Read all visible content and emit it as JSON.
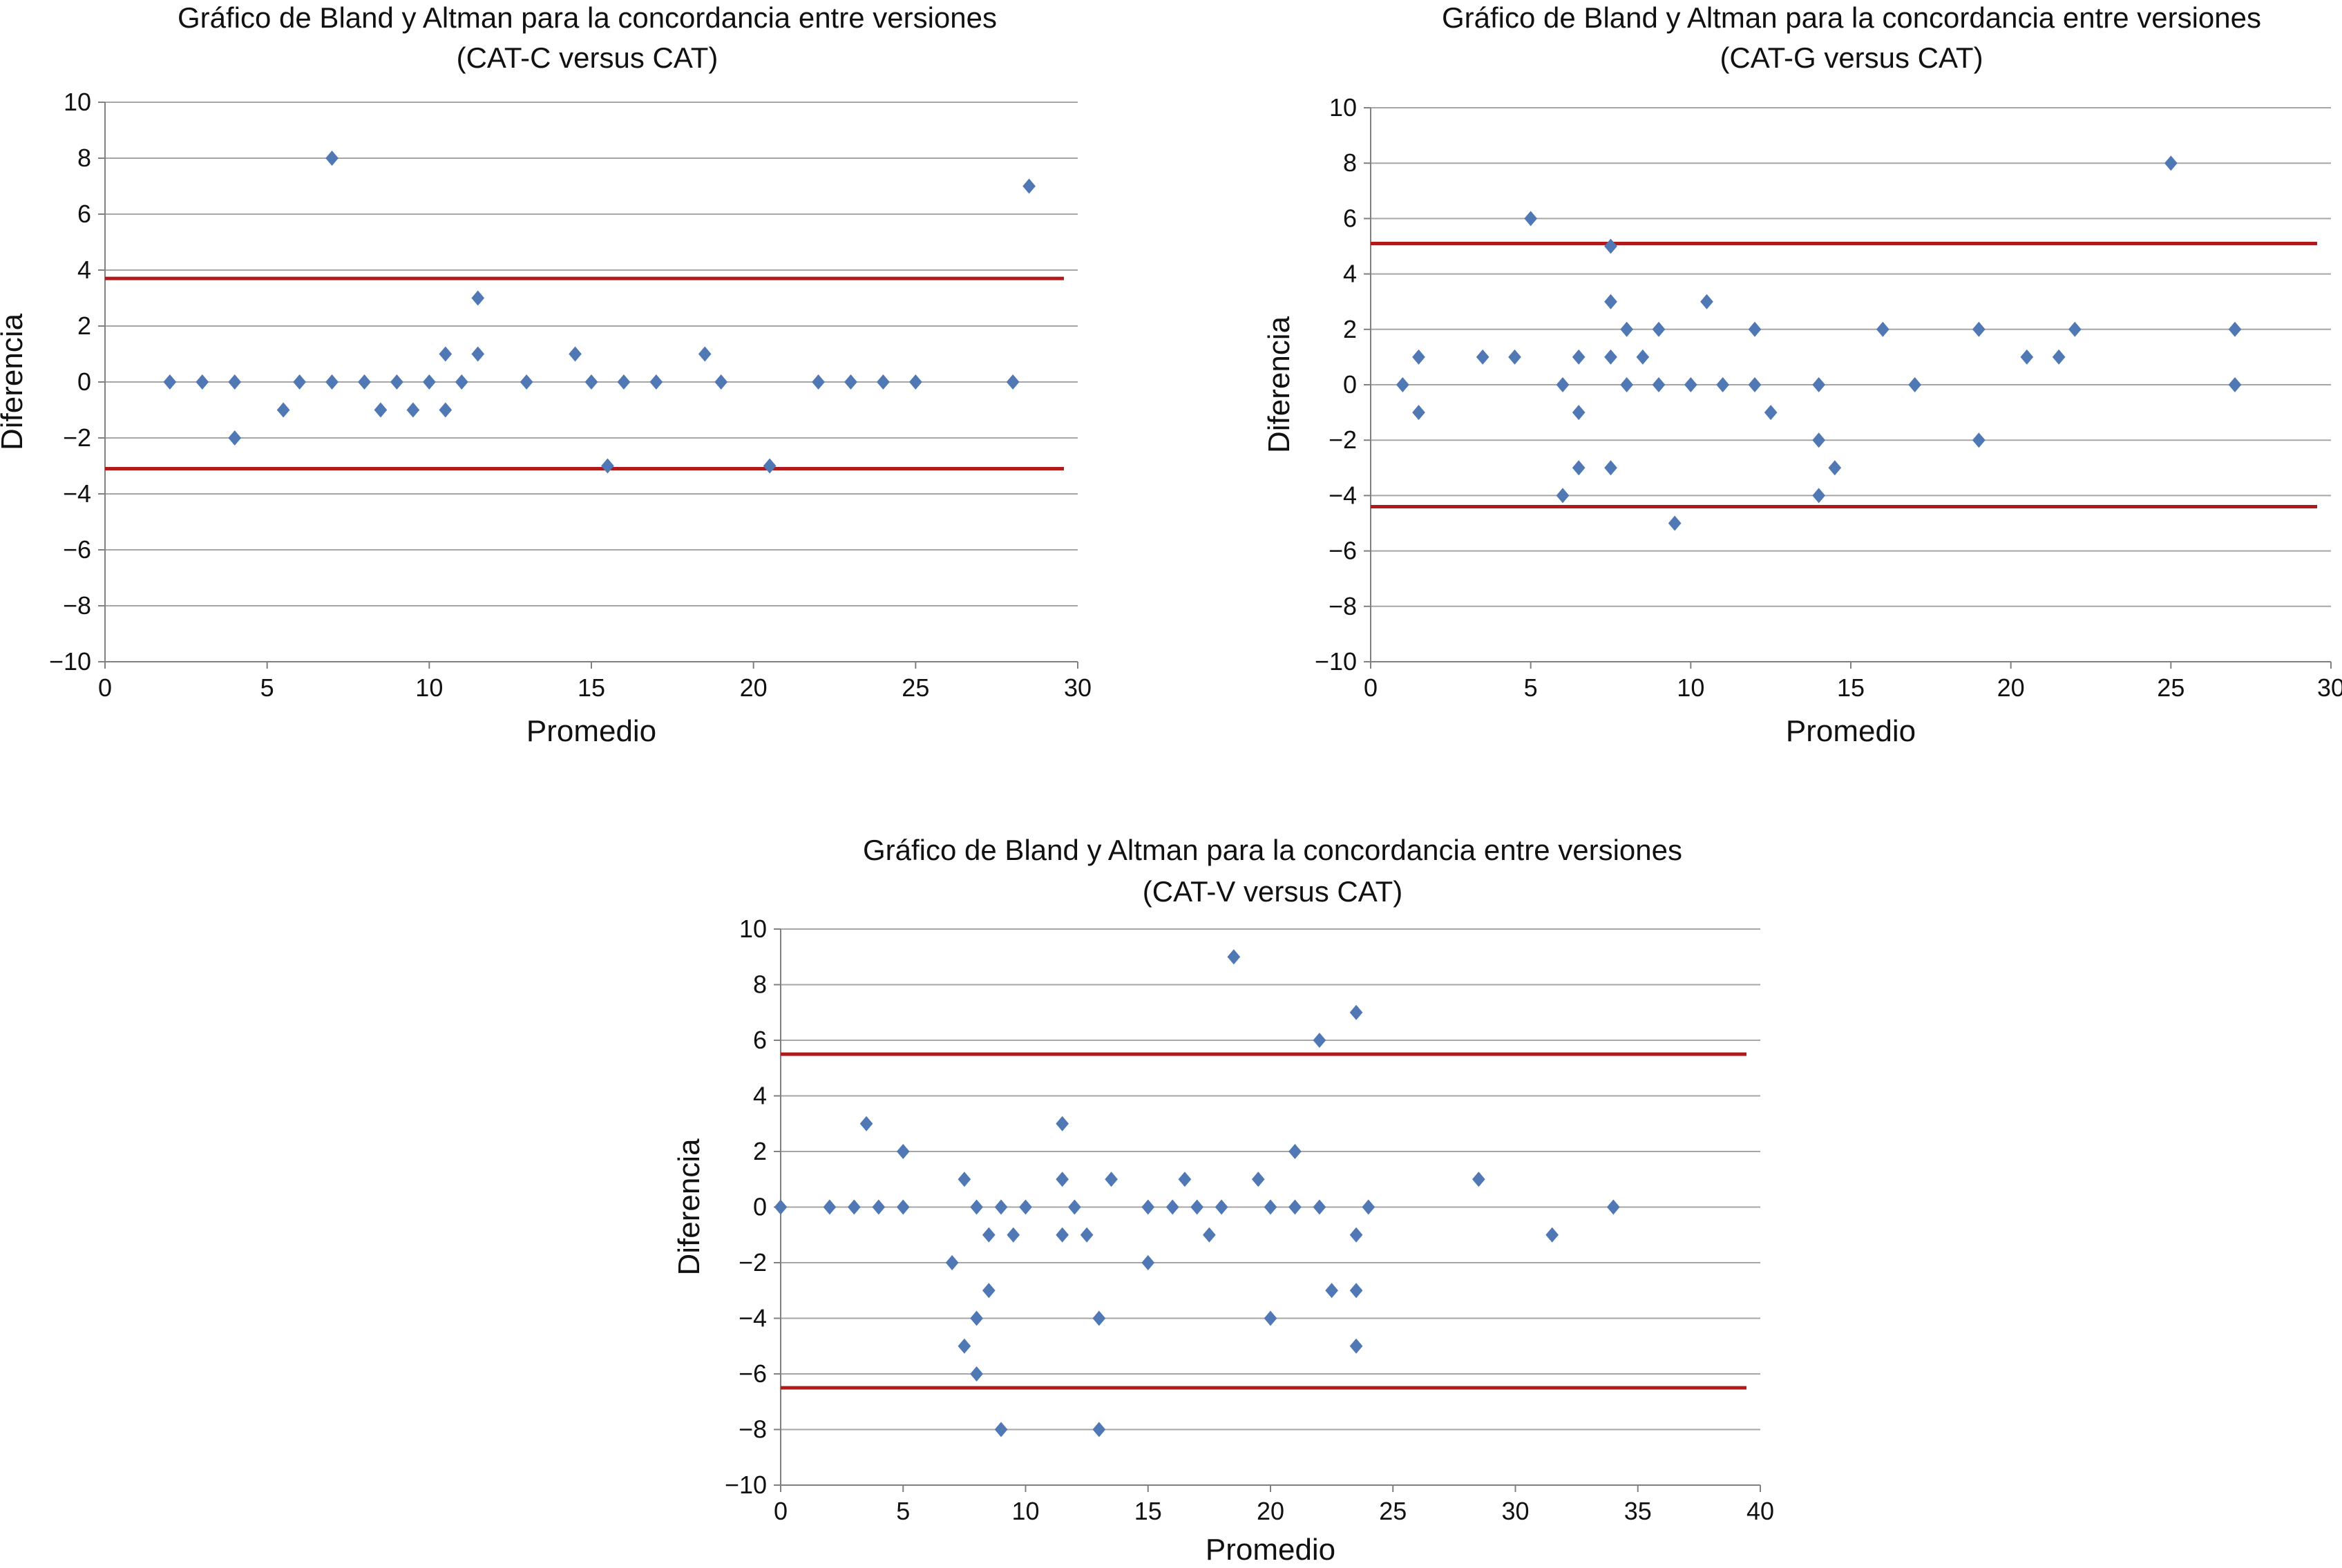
{
  "colors": {
    "point": "#4f78b5",
    "limit_line": "#b01a1a",
    "grid": "#a6a6a6",
    "axis": "#808080"
  },
  "chart_data": [
    {
      "type": "scatter",
      "name": "cat-c",
      "title_line1": "Gráfico de Bland y Altman para la concordancia entre versiones",
      "title_line2": "(CAT-C versus CAT)",
      "xlabel": "Promedio",
      "ylabel": "Diferencia",
      "xlim": [
        0,
        30
      ],
      "ylim": [
        -10,
        10
      ],
      "xticks": [
        0,
        5,
        10,
        15,
        20,
        25,
        30
      ],
      "yticks": [
        10,
        8,
        6,
        4,
        2,
        0,
        -2,
        -4,
        -6,
        -8,
        -10
      ],
      "ytick_labels": [
        "10",
        "8",
        "6",
        "4",
        "2",
        "0",
        "−2",
        "−4",
        "−6",
        "−8",
        "−10"
      ],
      "xtick_labels": [
        "0",
        "5",
        "10",
        "15",
        "20",
        "25",
        "30"
      ],
      "grid": true,
      "limit_lines": [
        3.7,
        -3.1
      ],
      "points": [
        [
          2,
          0
        ],
        [
          3,
          0
        ],
        [
          4,
          0
        ],
        [
          4,
          -2
        ],
        [
          5.5,
          -1
        ],
        [
          6,
          0
        ],
        [
          7,
          8
        ],
        [
          7,
          0
        ],
        [
          8,
          0
        ],
        [
          8.5,
          -1
        ],
        [
          9,
          0
        ],
        [
          9.5,
          -1
        ],
        [
          10,
          0
        ],
        [
          10.5,
          1
        ],
        [
          10.5,
          -1
        ],
        [
          11,
          0
        ],
        [
          11.5,
          3
        ],
        [
          11.5,
          1
        ],
        [
          13,
          0
        ],
        [
          14.5,
          1
        ],
        [
          15,
          0
        ],
        [
          15.5,
          -3
        ],
        [
          16,
          0
        ],
        [
          17,
          0
        ],
        [
          18.5,
          1
        ],
        [
          19,
          0
        ],
        [
          20.5,
          -3
        ],
        [
          22,
          0
        ],
        [
          23,
          0
        ],
        [
          24,
          0
        ],
        [
          25,
          0
        ],
        [
          28,
          0
        ],
        [
          28.5,
          7
        ]
      ]
    },
    {
      "type": "scatter",
      "name": "cat-g",
      "title_line1": "Gráfico de Bland y Altman para la concordancia entre versiones",
      "title_line2": "(CAT-G versus CAT)",
      "xlabel": "Promedio",
      "ylabel": "Diferencia",
      "xlim": [
        0,
        30
      ],
      "ylim": [
        -10,
        10
      ],
      "xticks": [
        0,
        5,
        10,
        15,
        20,
        25,
        30
      ],
      "yticks": [
        10,
        8,
        6,
        4,
        2,
        0,
        -2,
        -4,
        -6,
        -8,
        -10
      ],
      "ytick_labels": [
        "10",
        "8",
        "6",
        "4",
        "2",
        "0",
        "−2",
        "−4",
        "−6",
        "−8",
        "−10"
      ],
      "xtick_labels": [
        "0",
        "5",
        "10",
        "15",
        "20",
        "25",
        "30"
      ],
      "grid": true,
      "limit_lines": [
        5.1,
        -4.4
      ],
      "points": [
        [
          1,
          0
        ],
        [
          1.5,
          1
        ],
        [
          1.5,
          -1
        ],
        [
          3.5,
          1
        ],
        [
          4.5,
          1
        ],
        [
          5,
          6
        ],
        [
          6,
          0
        ],
        [
          6,
          -4
        ],
        [
          6.5,
          1
        ],
        [
          6.5,
          -1
        ],
        [
          6.5,
          -3
        ],
        [
          7.5,
          5
        ],
        [
          7.5,
          3
        ],
        [
          7.5,
          1
        ],
        [
          7.5,
          -3
        ],
        [
          8,
          2
        ],
        [
          8,
          0
        ],
        [
          8.5,
          1
        ],
        [
          9,
          2
        ],
        [
          9,
          0
        ],
        [
          9.5,
          -5
        ],
        [
          10,
          0
        ],
        [
          10.5,
          3
        ],
        [
          11,
          0
        ],
        [
          12,
          2
        ],
        [
          12,
          0
        ],
        [
          12.5,
          -1
        ],
        [
          14,
          0
        ],
        [
          14,
          -2
        ],
        [
          14,
          -4
        ],
        [
          14.5,
          -3
        ],
        [
          16,
          2
        ],
        [
          17,
          0
        ],
        [
          19,
          2
        ],
        [
          19,
          -2
        ],
        [
          20.5,
          1
        ],
        [
          21.5,
          1
        ],
        [
          22,
          2
        ],
        [
          25,
          8
        ],
        [
          27,
          2
        ],
        [
          27,
          0
        ]
      ]
    },
    {
      "type": "scatter",
      "name": "cat-v",
      "title_line1": "Gráfico de Bland y Altman para la concordancia entre versiones",
      "title_line2": "(CAT-V versus CAT)",
      "xlabel": "Promedio",
      "ylabel": "Diferencia",
      "xlim": [
        0,
        40
      ],
      "ylim": [
        -10,
        10
      ],
      "xticks": [
        0,
        5,
        10,
        15,
        20,
        25,
        30,
        35,
        40
      ],
      "yticks": [
        10,
        8,
        6,
        4,
        2,
        0,
        -2,
        -4,
        -6,
        -8,
        -10
      ],
      "ytick_labels": [
        "10",
        "8",
        "6",
        "4",
        "2",
        "0",
        "−2",
        "−4",
        "−6",
        "−8",
        "−10"
      ],
      "xtick_labels": [
        "0",
        "5",
        "10",
        "15",
        "20",
        "25",
        "30",
        "35",
        "40"
      ],
      "grid": true,
      "limit_lines": [
        5.5,
        -6.5
      ],
      "points": [
        [
          0,
          0
        ],
        [
          2,
          0
        ],
        [
          3,
          0
        ],
        [
          3.5,
          3
        ],
        [
          4,
          0
        ],
        [
          5,
          2
        ],
        [
          5,
          0
        ],
        [
          7,
          -2
        ],
        [
          7.5,
          1
        ],
        [
          7.5,
          -5
        ],
        [
          8,
          0
        ],
        [
          8,
          -4
        ],
        [
          8,
          -6
        ],
        [
          8.5,
          -1
        ],
        [
          8.5,
          -3
        ],
        [
          9,
          0
        ],
        [
          9,
          -8
        ],
        [
          9.5,
          -1
        ],
        [
          10,
          0
        ],
        [
          11.5,
          3
        ],
        [
          11.5,
          1
        ],
        [
          11.5,
          -1
        ],
        [
          12,
          0
        ],
        [
          12.5,
          -1
        ],
        [
          13,
          -4
        ],
        [
          13,
          -8
        ],
        [
          13.5,
          1
        ],
        [
          15,
          0
        ],
        [
          15,
          -2
        ],
        [
          16,
          0
        ],
        [
          16.5,
          1
        ],
        [
          17,
          0
        ],
        [
          17.5,
          -1
        ],
        [
          18,
          0
        ],
        [
          18.5,
          9
        ],
        [
          19.5,
          1
        ],
        [
          20,
          0
        ],
        [
          20,
          -4
        ],
        [
          21,
          2
        ],
        [
          21,
          0
        ],
        [
          22,
          6
        ],
        [
          22,
          0
        ],
        [
          22.5,
          -3
        ],
        [
          23.5,
          7
        ],
        [
          23.5,
          -1
        ],
        [
          23.5,
          -3
        ],
        [
          23.5,
          -5
        ],
        [
          24,
          0
        ],
        [
          28.5,
          1
        ],
        [
          31.5,
          -1
        ],
        [
          34,
          0
        ]
      ]
    }
  ]
}
